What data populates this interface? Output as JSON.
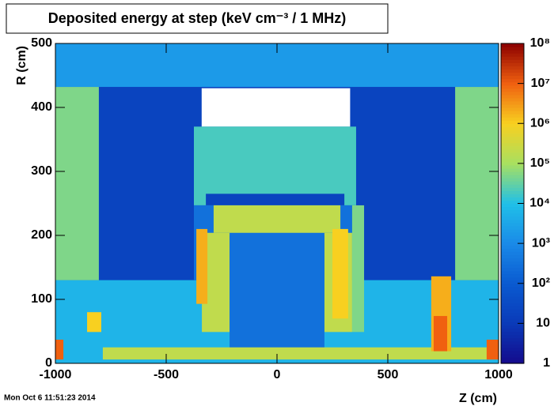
{
  "chart_data": {
    "type": "heatmap",
    "title": "Deposited energy at step (keV cm⁻³ / 1 MHz)",
    "x_label": "Z (cm)",
    "y_label": "R (cm)",
    "timestamp": "Mon Oct  6 11:51:23 2014",
    "xlim": [
      -1000,
      1000
    ],
    "xticks": [
      -1000,
      -500,
      0,
      500,
      1000
    ],
    "ylim": [
      0,
      500
    ],
    "yticks": [
      0,
      100,
      200,
      300,
      400,
      500
    ],
    "zlim": [
      1,
      100000000
    ],
    "zlog": true,
    "zticks": [
      1,
      10,
      {
        "value": 100,
        "label": "10²"
      },
      {
        "value": 1000,
        "label": "10³"
      },
      {
        "value": 10000,
        "label": "10⁴"
      },
      {
        "value": 100000,
        "label": "10⁵"
      },
      {
        "value": 1000000,
        "label": "10⁶"
      },
      {
        "value": 10000000,
        "label": "10⁷"
      },
      {
        "value": 100000000,
        "label": "10⁸"
      }
    ],
    "palette": [
      "#140a8c",
      "#0a3ab8",
      "#0a5ad0",
      "#1a8ae8",
      "#20c0e8",
      "#a8e060",
      "#f8d020",
      "#f06010",
      "#8c0000"
    ],
    "empty_color": "#ffffff",
    "cells": [
      {
        "z": [
          -1000,
          1000
        ],
        "r": [
          0,
          500
        ],
        "value": 300
      },
      {
        "z": [
          -1000,
          1000
        ],
        "r": [
          432,
          500
        ],
        "value": 2000
      },
      {
        "z": [
          -804,
          804
        ],
        "r": [
          130,
          432
        ],
        "value": 20
      },
      {
        "z": [
          -1000,
          1000
        ],
        "r": [
          0,
          130
        ],
        "value": 6000
      },
      {
        "z": [
          -1000,
          -804
        ],
        "r": [
          130,
          432
        ],
        "value": 50000
      },
      {
        "z": [
          804,
          1000
        ],
        "r": [
          130,
          432
        ],
        "value": 50000
      },
      {
        "z": [
          -340,
          330
        ],
        "r": [
          370,
          430
        ],
        "value": null
      },
      {
        "z": [
          -375,
          357
        ],
        "r": [
          247,
          370
        ],
        "value": 20000
      },
      {
        "z": [
          -321,
          304
        ],
        "r": [
          247,
          265
        ],
        "value": 20
      },
      {
        "z": [
          -375,
          357
        ],
        "r": [
          130,
          247
        ],
        "value": 300
      },
      {
        "z": [
          -286,
          286
        ],
        "r": [
          204,
          247
        ],
        "value": 200000
      },
      {
        "z": [
          -339,
          -214
        ],
        "r": [
          49,
          204
        ],
        "value": 200000
      },
      {
        "z": [
          214,
          339
        ],
        "r": [
          49,
          204
        ],
        "value": 200000
      },
      {
        "z": [
          -214,
          214
        ],
        "r": [
          20,
          200
        ],
        "value": 300
      },
      {
        "z": [
          339,
          393
        ],
        "r": [
          49,
          247
        ],
        "value": 50000
      },
      {
        "z": [
          -364,
          -314
        ],
        "r": [
          93,
          210
        ],
        "value": 2000000
      },
      {
        "z": [
          250,
          321
        ],
        "r": [
          70,
          210
        ],
        "value": 1000000
      },
      {
        "z": [
          -857,
          -793
        ],
        "r": [
          49,
          80
        ],
        "value": 1000000
      },
      {
        "z": [
          -786,
          1000
        ],
        "r": [
          6,
          25
        ],
        "value": 200000
      },
      {
        "z": [
          696,
          786
        ],
        "r": [
          19,
          136
        ],
        "value": 2000000
      },
      {
        "z": [
          707,
          768
        ],
        "r": [
          19,
          74
        ],
        "value": 10000000
      },
      {
        "z": [
          -1000,
          -964
        ],
        "r": [
          6,
          37
        ],
        "value": 10000000
      },
      {
        "z": [
          946,
          1000
        ],
        "r": [
          6,
          37
        ],
        "value": 10000000
      }
    ]
  }
}
